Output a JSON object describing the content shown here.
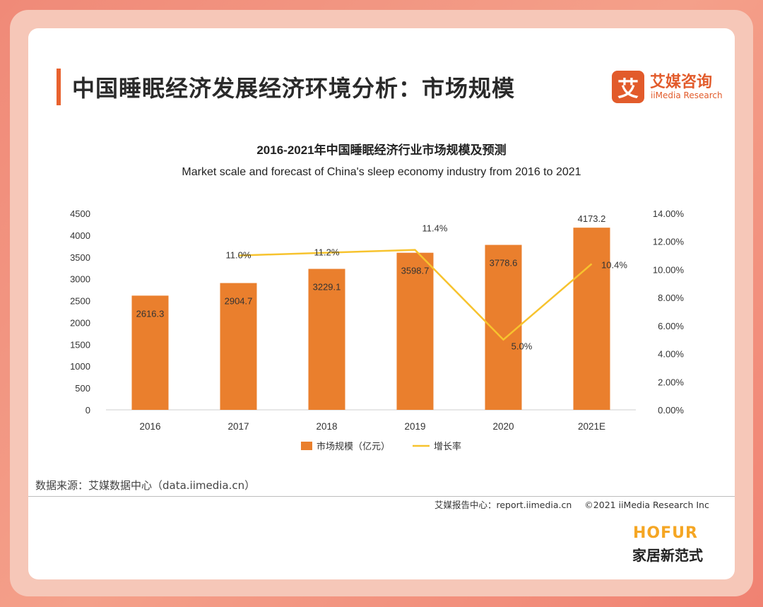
{
  "page": {
    "title": "中国睡眠经济发展经济环境分析：市场规模",
    "source": "数据来源：艾媒数据中心（data.iimedia.cn）"
  },
  "logo": {
    "mark": "艾",
    "cn": "艾媒咨询",
    "en": "iiMedia Research"
  },
  "footer": {
    "center": "艾媒报告中心：report.iimedia.cn",
    "copyright": "©2021  iiMedia Research  Inc"
  },
  "watermark": {
    "brand": "HOFUR",
    "subtitle": "家居新范式"
  },
  "colors": {
    "bar": "#ea7f2d",
    "line": "#f7c32e",
    "accent": "#e25b2b"
  },
  "chart_data": {
    "type": "bar",
    "title": "2016-2021年中国睡眠经济行业市场规模及预测",
    "subtitle": "Market scale and forecast of China's sleep economy industry from 2016 to 2021",
    "categories": [
      "2016",
      "2017",
      "2018",
      "2019",
      "2020",
      "2021E"
    ],
    "series": [
      {
        "name": "市场规模（亿元）",
        "type": "bar",
        "axis": "left",
        "values": [
          2616.3,
          2904.7,
          3229.1,
          3598.7,
          3778.6,
          4173.2
        ],
        "labels": [
          "2616.3",
          "2904.7",
          "3229.1",
          "3598.7",
          "3778.6",
          "4173.2"
        ]
      },
      {
        "name": "增长率",
        "type": "line",
        "axis": "right",
        "values": [
          null,
          11.0,
          11.2,
          11.4,
          5.0,
          10.4
        ],
        "labels": [
          "",
          "11.0%",
          "11.2%",
          "11.4%",
          "5.0%",
          "10.4%"
        ]
      }
    ],
    "y_left": {
      "min": 0,
      "max": 4500,
      "ticks": [
        "0",
        "500",
        "1000",
        "1500",
        "2000",
        "2500",
        "3000",
        "3500",
        "4000",
        "4500"
      ]
    },
    "y_right": {
      "min": 0,
      "max": 14,
      "ticks": [
        "0.00%",
        "2.00%",
        "4.00%",
        "6.00%",
        "8.00%",
        "10.00%",
        "12.00%",
        "14.00%"
      ]
    },
    "grid": false,
    "legend_position": "bottom"
  }
}
